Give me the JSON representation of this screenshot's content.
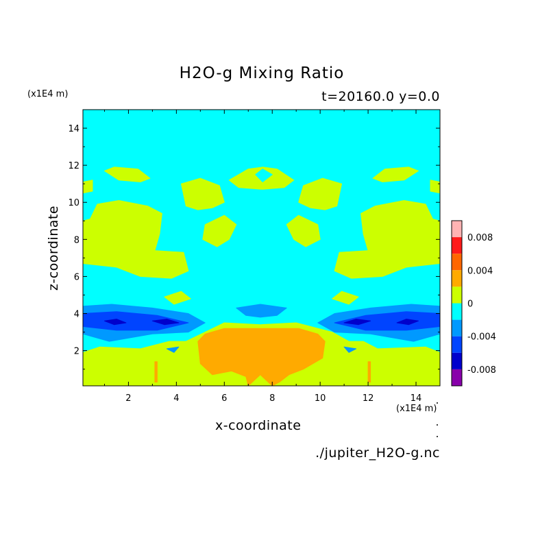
{
  "chart_data": {
    "type": "heatmap",
    "title": "H2O-g Mixing Ratio",
    "subtitle": "t=20160.0 y=0.0",
    "xlabel": "x-coordinate",
    "ylabel": "z-coordinate",
    "x_scale_label": "(x1E4 m)",
    "y_scale_label": "(x1E4 m)",
    "xlim": [
      0.1,
      15.0
    ],
    "ylim": [
      0.1,
      15.0
    ],
    "x_ticks": [
      2,
      4,
      6,
      8,
      10,
      12,
      14
    ],
    "y_ticks": [
      2,
      4,
      6,
      8,
      10,
      12,
      14
    ],
    "x_tick_labels": [
      "2",
      "4",
      "6",
      "8",
      "10",
      "12",
      "14"
    ],
    "y_tick_labels": [
      "2",
      "4",
      "6",
      "8",
      "10",
      "12",
      "14"
    ],
    "background_level": "0",
    "colorbar": {
      "levels": [
        {
          "range": [
            0.008,
            0.01
          ],
          "color": "#ffb3b3"
        },
        {
          "range": [
            0.006,
            0.008
          ],
          "color": "#ff1a1a"
        },
        {
          "range": [
            0.004,
            0.006
          ],
          "color": "#ff6600"
        },
        {
          "range": [
            0.002,
            0.004
          ],
          "color": "#ffaa00"
        },
        {
          "range": [
            0.0,
            0.002
          ],
          "color": "#ccff00"
        },
        {
          "range": [
            -0.002,
            0.0
          ],
          "color": "#00ffff"
        },
        {
          "range": [
            -0.004,
            -0.002
          ],
          "color": "#0099ff"
        },
        {
          "range": [
            -0.006,
            -0.004
          ],
          "color": "#0044ff"
        },
        {
          "range": [
            -0.008,
            -0.006
          ],
          "color": "#0000cc"
        },
        {
          "range": [
            -0.01,
            -0.008
          ],
          "color": "#8800aa"
        }
      ],
      "tick_values": [
        0.008,
        0.004,
        0,
        -0.004,
        -0.008
      ],
      "tick_labels": [
        "0.008",
        "0.004",
        "0",
        "-0.004",
        "-0.008"
      ]
    },
    "regions": [
      {
        "level": "0.000..0.002",
        "color": "#ccff00",
        "polygons": [
          [
            [
              0.1,
              1.9
            ],
            [
              0.8,
              2.2
            ],
            [
              2.5,
              2.1
            ],
            [
              3.7,
              2.5
            ],
            [
              4.4,
              2.5
            ],
            [
              5.2,
              3.0
            ],
            [
              6.0,
              3.5
            ],
            [
              7.5,
              3.4
            ],
            [
              9.0,
              3.5
            ],
            [
              10.5,
              3.0
            ],
            [
              11.2,
              2.5
            ],
            [
              11.8,
              2.5
            ],
            [
              12.4,
              2.1
            ],
            [
              14.4,
              2.2
            ],
            [
              15.0,
              1.9
            ],
            [
              15.0,
              0.1
            ],
            [
              0.1,
              0.1
            ]
          ],
          [
            [
              0.1,
              6.7
            ],
            [
              1.5,
              6.5
            ],
            [
              2.5,
              6.0
            ],
            [
              3.8,
              5.9
            ],
            [
              4.5,
              6.3
            ],
            [
              4.3,
              7.3
            ],
            [
              3.1,
              7.4
            ],
            [
              3.3,
              8.3
            ],
            [
              3.4,
              9.4
            ],
            [
              2.8,
              9.8
            ],
            [
              1.6,
              10.1
            ],
            [
              0.7,
              9.9
            ],
            [
              0.4,
              9.1
            ],
            [
              0.1,
              9.0
            ]
          ],
          [
            [
              15.0,
              6.7
            ],
            [
              13.6,
              6.5
            ],
            [
              12.6,
              6.0
            ],
            [
              11.3,
              5.9
            ],
            [
              10.6,
              6.3
            ],
            [
              10.8,
              7.3
            ],
            [
              12.0,
              7.4
            ],
            [
              11.8,
              8.3
            ],
            [
              11.7,
              9.4
            ],
            [
              12.3,
              9.8
            ],
            [
              13.5,
              10.1
            ],
            [
              14.4,
              9.9
            ],
            [
              14.7,
              9.1
            ],
            [
              15.0,
              9.0
            ]
          ],
          [
            [
              0.1,
              11.1
            ],
            [
              0.5,
              11.2
            ],
            [
              0.5,
              10.6
            ],
            [
              0.1,
              10.5
            ]
          ],
          [
            [
              15.0,
              11.1
            ],
            [
              14.6,
              11.2
            ],
            [
              14.6,
              10.6
            ],
            [
              15.0,
              10.5
            ]
          ],
          [
            [
              1.0,
              11.7
            ],
            [
              1.4,
              11.9
            ],
            [
              2.4,
              11.8
            ],
            [
              2.9,
              11.3
            ],
            [
              2.5,
              11.1
            ],
            [
              1.6,
              11.2
            ]
          ],
          [
            [
              14.1,
              11.7
            ],
            [
              13.7,
              11.9
            ],
            [
              12.7,
              11.8
            ],
            [
              12.2,
              11.3
            ],
            [
              12.6,
              11.1
            ],
            [
              13.5,
              11.2
            ]
          ],
          [
            [
              4.2,
              11.0
            ],
            [
              5.0,
              11.3
            ],
            [
              5.8,
              10.9
            ],
            [
              6.0,
              10.0
            ],
            [
              5.5,
              9.7
            ],
            [
              4.9,
              9.6
            ],
            [
              4.4,
              9.8
            ]
          ],
          [
            [
              10.9,
              11.0
            ],
            [
              10.1,
              11.3
            ],
            [
              9.3,
              10.9
            ],
            [
              9.1,
              10.0
            ],
            [
              9.6,
              9.7
            ],
            [
              10.2,
              9.6
            ],
            [
              10.7,
              9.8
            ]
          ],
          [
            [
              6.2,
              11.2
            ],
            [
              7.0,
              11.8
            ],
            [
              7.6,
              11.9
            ],
            [
              8.2,
              11.8
            ],
            [
              8.9,
              11.2
            ],
            [
              8.5,
              10.8
            ],
            [
              7.6,
              10.7
            ],
            [
              6.6,
              10.8
            ]
          ],
          [
            [
              5.2,
              8.8
            ],
            [
              6.0,
              9.3
            ],
            [
              6.5,
              8.8
            ],
            [
              6.2,
              8.0
            ],
            [
              5.7,
              7.6
            ],
            [
              5.1,
              8.0
            ]
          ],
          [
            [
              9.9,
              8.8
            ],
            [
              9.1,
              9.3
            ],
            [
              8.6,
              8.8
            ],
            [
              8.9,
              8.0
            ],
            [
              9.4,
              7.6
            ],
            [
              10.0,
              8.0
            ]
          ],
          [
            [
              3.5,
              4.9
            ],
            [
              4.2,
              5.2
            ],
            [
              4.6,
              4.8
            ],
            [
              3.9,
              4.5
            ]
          ],
          [
            [
              11.6,
              4.9
            ],
            [
              10.9,
              5.2
            ],
            [
              10.5,
              4.8
            ],
            [
              11.2,
              4.5
            ]
          ]
        ]
      },
      {
        "level": "-0.002..0.000",
        "color": "#00ffff",
        "polygons": [
          [
            [
              7.3,
              11.5
            ],
            [
              7.6,
              11.8
            ],
            [
              8.0,
              11.5
            ],
            [
              7.6,
              11.1
            ]
          ]
        ]
      },
      {
        "level": "-0.004..-0.002",
        "color": "#0099ff",
        "polygons": [
          [
            [
              0.1,
              4.4
            ],
            [
              1.3,
              4.5
            ],
            [
              3.0,
              4.3
            ],
            [
              4.5,
              4.0
            ],
            [
              5.2,
              3.5
            ],
            [
              4.5,
              3.0
            ],
            [
              3.0,
              2.9
            ],
            [
              1.2,
              2.5
            ],
            [
              0.1,
              2.9
            ]
          ],
          [
            [
              15.0,
              4.4
            ],
            [
              13.8,
              4.5
            ],
            [
              12.1,
              4.3
            ],
            [
              10.6,
              4.0
            ],
            [
              9.9,
              3.5
            ],
            [
              10.6,
              3.0
            ],
            [
              12.1,
              2.9
            ],
            [
              13.9,
              2.5
            ],
            [
              15.0,
              2.9
            ]
          ],
          [
            [
              6.5,
              4.3
            ],
            [
              7.5,
              4.5
            ],
            [
              8.6,
              4.3
            ],
            [
              8.2,
              3.9
            ],
            [
              7.5,
              3.8
            ],
            [
              6.9,
              3.9
            ]
          ],
          [
            [
              3.6,
              2.1
            ],
            [
              4.1,
              2.2
            ],
            [
              3.9,
              1.9
            ]
          ],
          [
            [
              11.5,
              2.1
            ],
            [
              11.0,
              2.2
            ],
            [
              11.2,
              1.9
            ]
          ]
        ]
      },
      {
        "level": "-0.006..-0.004",
        "color": "#0044ff",
        "polygons": [
          [
            [
              0.1,
              4.0
            ],
            [
              1.5,
              4.1
            ],
            [
              3.2,
              3.9
            ],
            [
              4.5,
              3.5
            ],
            [
              3.2,
              3.1
            ],
            [
              1.5,
              3.1
            ],
            [
              0.1,
              3.3
            ]
          ],
          [
            [
              15.0,
              4.0
            ],
            [
              13.6,
              4.1
            ],
            [
              11.9,
              3.9
            ],
            [
              10.6,
              3.5
            ],
            [
              11.9,
              3.1
            ],
            [
              13.6,
              3.1
            ],
            [
              15.0,
              3.3
            ]
          ]
        ]
      },
      {
        "level": "-0.008..-0.006",
        "color": "#0000cc",
        "polygons": [
          [
            [
              1.0,
              3.6
            ],
            [
              1.5,
              3.7
            ],
            [
              1.9,
              3.5
            ],
            [
              1.4,
              3.4
            ]
          ],
          [
            [
              3.0,
              3.6
            ],
            [
              3.6,
              3.7
            ],
            [
              4.1,
              3.5
            ],
            [
              3.5,
              3.4
            ]
          ],
          [
            [
              14.1,
              3.6
            ],
            [
              13.6,
              3.7
            ],
            [
              13.2,
              3.5
            ],
            [
              13.7,
              3.4
            ]
          ],
          [
            [
              12.1,
              3.6
            ],
            [
              11.5,
              3.7
            ],
            [
              11.0,
              3.5
            ],
            [
              11.6,
              3.4
            ]
          ]
        ]
      },
      {
        "level": "0.002..0.004",
        "color": "#ffaa00",
        "polygons": [
          [
            [
              4.9,
              2.5
            ],
            [
              5.2,
              2.9
            ],
            [
              6.0,
              3.2
            ],
            [
              7.5,
              3.2
            ],
            [
              9.1,
              3.2
            ],
            [
              9.9,
              2.9
            ],
            [
              10.2,
              2.5
            ],
            [
              10.1,
              1.6
            ],
            [
              9.3,
              1.0
            ],
            [
              8.7,
              0.7
            ],
            [
              8.3,
              0.3
            ],
            [
              8.0,
              0.1
            ],
            [
              7.5,
              0.7
            ],
            [
              7.0,
              0.1
            ],
            [
              6.9,
              0.6
            ],
            [
              6.3,
              0.9
            ],
            [
              5.5,
              0.7
            ],
            [
              5.0,
              1.3
            ]
          ],
          [
            [
              3.1,
              1.4
            ],
            [
              3.2,
              1.4
            ],
            [
              3.2,
              0.3
            ],
            [
              3.1,
              0.3
            ]
          ],
          [
            [
              12.0,
              1.4
            ],
            [
              12.1,
              1.4
            ],
            [
              12.1,
              0.3
            ],
            [
              12.0,
              0.3
            ]
          ]
        ]
      }
    ]
  }
}
